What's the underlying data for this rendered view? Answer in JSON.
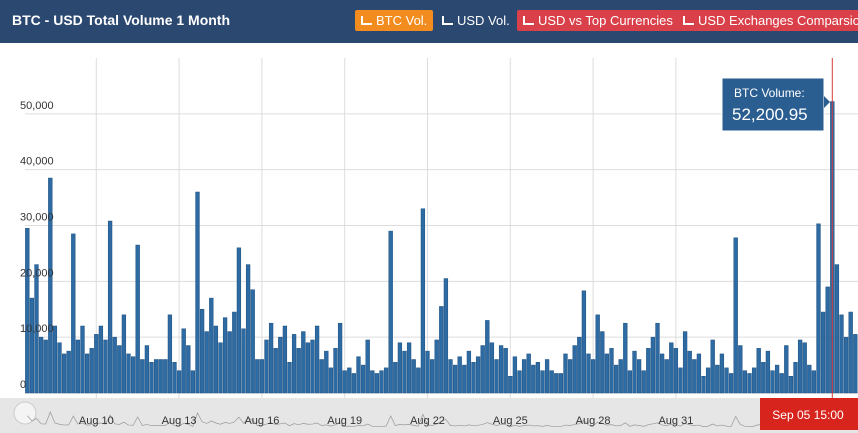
{
  "chart_data": {
    "type": "bar",
    "title": "BTC - USD Total Volume 1 Month",
    "buttons": [
      "BTC Vol.",
      "USD Vol.",
      "USD vs Top Currencies",
      "USD Exchanges Comparsion"
    ],
    "color": "#2e6ba3",
    "ylim": [
      0,
      60000
    ],
    "yticks": [
      0,
      {
        "value": 10000,
        "label": "10,000"
      },
      {
        "value": 20000,
        "label": "20,000"
      },
      {
        "value": 30000,
        "label": "30,000"
      },
      {
        "value": 40000,
        "label": "40,000"
      },
      {
        "value": 50000,
        "label": "50,000"
      }
    ],
    "grid": true,
    "categories": [
      null,
      null,
      null,
      null,
      null,
      null,
      null,
      null,
      null,
      null,
      null,
      null,
      null,
      null,
      null,
      "Aug 10",
      null,
      null,
      null,
      null,
      null,
      null,
      null,
      null,
      null,
      null,
      null,
      null,
      null,
      null,
      null,
      null,
      null,
      "Aug 13",
      null,
      null,
      null,
      null,
      null,
      null,
      null,
      null,
      null,
      null,
      null,
      null,
      null,
      null,
      null,
      null,
      null,
      "Aug 16",
      null,
      null,
      null,
      null,
      null,
      null,
      null,
      null,
      null,
      null,
      null,
      null,
      null,
      null,
      null,
      null,
      null,
      "Aug 19",
      null,
      null,
      null,
      null,
      null,
      null,
      null,
      null,
      null,
      null,
      null,
      null,
      null,
      null,
      null,
      null,
      null,
      "Aug 22",
      null,
      null,
      null,
      null,
      null,
      null,
      null,
      null,
      null,
      null,
      null,
      null,
      null,
      null,
      null,
      null,
      null,
      "Aug 25",
      null,
      null,
      null,
      null,
      null,
      null,
      null,
      null,
      null,
      null,
      null,
      null,
      null,
      null,
      null,
      null,
      null,
      "Aug 28",
      null,
      null,
      null,
      null,
      null,
      null,
      null,
      null,
      null,
      null,
      null,
      null,
      null,
      null,
      null,
      null,
      null,
      "Aug 31",
      null,
      null,
      null,
      null,
      null,
      null,
      null,
      null,
      null,
      null,
      null,
      null,
      null,
      null,
      null,
      null,
      null,
      null,
      null,
      null,
      null,
      null,
      null,
      null,
      null,
      null,
      null,
      null,
      null,
      null,
      null,
      null,
      null,
      null,
      null,
      null,
      null,
      null,
      null
    ],
    "values": [
      29500,
      17000,
      23000,
      10000,
      9500,
      38500,
      12000,
      9000,
      7000,
      7500,
      28500,
      9500,
      12000,
      7000,
      8000,
      10500,
      12000,
      9500,
      30800,
      10000,
      8500,
      14000,
      7000,
      6500,
      26500,
      6000,
      8500,
      5500,
      6000,
      6000,
      6000,
      14000,
      5500,
      4000,
      11500,
      8500,
      4000,
      36000,
      15000,
      11000,
      17000,
      12000,
      9000,
      13500,
      11000,
      14500,
      26000,
      11500,
      23000,
      18500,
      6000,
      6000,
      9500,
      12500,
      8000,
      10000,
      12000,
      5500,
      10500,
      8000,
      11000,
      9000,
      9500,
      12000,
      6000,
      7500,
      4500,
      8000,
      12500,
      4000,
      4500,
      3500,
      6500,
      5000,
      9500,
      4000,
      3500,
      4000,
      4500,
      29000,
      5500,
      9000,
      7500,
      9000,
      6000,
      4500,
      33000,
      7500,
      6000,
      9500,
      15500,
      20500,
      6000,
      5000,
      6500,
      5000,
      7500,
      5500,
      6500,
      8500,
      13000,
      9000,
      6000,
      8500,
      8000,
      3000,
      6500,
      4000,
      6000,
      7000,
      5000,
      5500,
      4000,
      6000,
      4000,
      3500,
      3500,
      7000,
      6000,
      8500,
      10000,
      18300,
      7000,
      6000,
      14000,
      11000,
      7000,
      8000,
      5000,
      6000,
      12500,
      4000,
      7500,
      6000,
      4000,
      8000,
      10000,
      12500,
      7000,
      6000,
      9000,
      8000,
      4500,
      11000,
      7500,
      6000,
      7000,
      3000,
      4500,
      9500,
      5000,
      7000,
      4500,
      3500,
      27800,
      8500,
      4000,
      3500,
      4500,
      8000,
      5500,
      7500,
      4000,
      5000,
      3500,
      8500,
      3000,
      5500,
      9500,
      9000,
      5000,
      4000,
      30300,
      14500,
      19000,
      52200.95,
      23000,
      14000,
      10000,
      14500,
      10500
    ],
    "tooltip": {
      "label": "BTC Volume:",
      "value_label": "52,200.95"
    },
    "navigator_label": "Sep 05 15:00"
  }
}
